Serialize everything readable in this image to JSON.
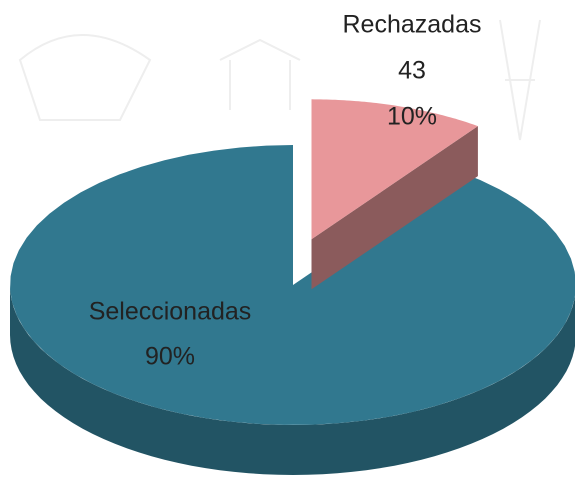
{
  "chart_data": {
    "type": "pie3d",
    "slices": [
      {
        "name": "Seleccionadas",
        "value": 90,
        "value_label": "90%",
        "color": "#31788f"
      },
      {
        "name": "Rechazadas",
        "count": 43,
        "value": 10,
        "value_label": "10%",
        "color": "#e8979a"
      }
    ]
  }
}
